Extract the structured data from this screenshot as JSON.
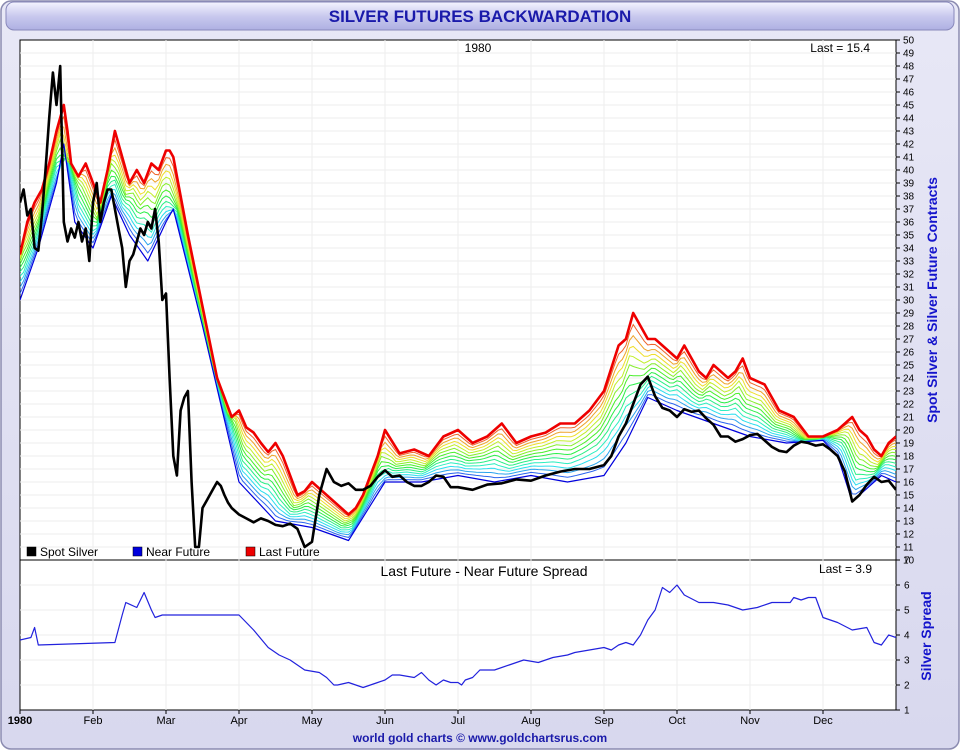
{
  "title": "SILVER FUTURES BACKWARDATION",
  "footer": "world gold charts © www.goldchartsrus.com",
  "x_axis": {
    "start_label": "1980",
    "months": [
      "Feb",
      "Mar",
      "Apr",
      "May",
      "Jun",
      "Jul",
      "Aug",
      "Sep",
      "Oct",
      "Nov",
      "Dec"
    ],
    "domain": [
      0,
      12
    ]
  },
  "colors": {
    "spot": "#000000",
    "near": "#0000dd",
    "last": "#ee0000",
    "spread": "#2222dd",
    "title_text": "#1a1aaa",
    "axis_title": "#1414cc"
  },
  "chart_data": [
    {
      "type": "line",
      "title": "1980",
      "annotation": "Last = 15.4",
      "ylabel": "Spot Silver & Silver Future Contracts",
      "ylim": [
        10,
        50
      ],
      "yticks": [
        10,
        11,
        12,
        13,
        14,
        15,
        16,
        17,
        18,
        19,
        20,
        21,
        22,
        23,
        24,
        25,
        26,
        27,
        28,
        29,
        30,
        31,
        32,
        33,
        34,
        35,
        36,
        37,
        38,
        39,
        40,
        41,
        42,
        43,
        44,
        45,
        46,
        47,
        48,
        49,
        50
      ],
      "legend": [
        "Spot Silver",
        "Near Future",
        "Last Future"
      ],
      "legend_position": "bottom-left",
      "grid": true,
      "series": [
        {
          "name": "Spot Silver",
          "x": [
            0,
            0.05,
            0.1,
            0.15,
            0.2,
            0.25,
            0.3,
            0.35,
            0.4,
            0.45,
            0.5,
            0.55,
            0.6,
            0.65,
            0.7,
            0.75,
            0.8,
            0.85,
            0.9,
            0.95,
            1,
            1.05,
            1.1,
            1.15,
            1.2,
            1.25,
            1.3,
            1.35,
            1.4,
            1.45,
            1.5,
            1.55,
            1.6,
            1.65,
            1.7,
            1.75,
            1.8,
            1.85,
            1.9,
            1.95,
            2,
            2.05,
            2.1,
            2.15,
            2.2,
            2.25,
            2.3,
            2.35,
            2.4,
            2.45,
            2.5,
            2.55,
            2.6,
            2.65,
            2.7,
            2.75,
            2.8,
            2.85,
            2.9,
            3,
            3.1,
            3.2,
            3.3,
            3.4,
            3.5,
            3.6,
            3.7,
            3.8,
            3.9,
            4,
            4.1,
            4.2,
            4.3,
            4.4,
            4.5,
            4.6,
            4.7,
            4.8,
            4.9,
            5,
            5.1,
            5.2,
            5.3,
            5.4,
            5.5,
            5.6,
            5.7,
            5.8,
            5.9,
            6,
            6.2,
            6.4,
            6.6,
            6.8,
            7,
            7.2,
            7.4,
            7.6,
            7.8,
            8,
            8.1,
            8.2,
            8.3,
            8.4,
            8.5,
            8.6,
            8.7,
            8.8,
            8.9,
            9,
            9.1,
            9.2,
            9.3,
            9.4,
            9.5,
            9.6,
            9.7,
            9.8,
            9.9,
            10,
            10.1,
            10.2,
            10.3,
            10.4,
            10.5,
            10.6,
            10.7,
            10.8,
            10.9,
            11,
            11.1,
            11.2,
            11.3,
            11.4,
            11.5,
            11.6,
            11.7,
            11.8,
            11.9,
            12
          ],
          "values": [
            37.5,
            38.5,
            36.5,
            37.0,
            34.0,
            33.8,
            36.5,
            40.0,
            44.0,
            47.5,
            45.0,
            48.0,
            36.0,
            34.5,
            35.5,
            34.8,
            36.0,
            34.5,
            35.5,
            33.0,
            37.5,
            39.0,
            36.0,
            37.5,
            38.5,
            38.5,
            37.0,
            35.5,
            34.0,
            31.0,
            33.0,
            33.5,
            34.5,
            35.5,
            35.0,
            36.0,
            35.5,
            37.0,
            34.5,
            30.0,
            30.5,
            24.0,
            18.0,
            16.5,
            21.5,
            22.5,
            23.0,
            16.0,
            11.0,
            11.0,
            14.0,
            14.5,
            15.0,
            15.5,
            16.0,
            15.7,
            15.0,
            14.4,
            14.0,
            13.5,
            13.2,
            12.9,
            13.2,
            13.0,
            12.7,
            12.6,
            12.8,
            12.4,
            11.0,
            11.4,
            15.0,
            17.0,
            16.0,
            15.7,
            15.9,
            15.4,
            15.4,
            15.7,
            16.4,
            16.9,
            16.4,
            16.5,
            16.0,
            15.7,
            15.7,
            16.0,
            16.5,
            16.4,
            15.6,
            15.6,
            15.4,
            15.8,
            15.9,
            16.2,
            16.1,
            16.5,
            16.8,
            17.0,
            17.0,
            17.3,
            18.0,
            19.5,
            20.5,
            22.0,
            23.5,
            24.1,
            22.6,
            21.7,
            21.5,
            21.0,
            21.6,
            21.4,
            21.5,
            20.9,
            20.4,
            19.5,
            19.5,
            19.1,
            19.3,
            19.6,
            19.7,
            19.2,
            18.7,
            18.4,
            18.3,
            18.8,
            19.1,
            19.0,
            18.8,
            18.9,
            18.5,
            18.0,
            16.8,
            14.5,
            15.0,
            15.8,
            16.4,
            16.0,
            16.1,
            15.4
          ]
        },
        {
          "name": "Near Future",
          "x": [
            0,
            0.25,
            0.5,
            0.6,
            0.75,
            1,
            1.25,
            1.5,
            1.75,
            2,
            2.1,
            2.5,
            3,
            3.5,
            4,
            4.5,
            5,
            5.5,
            6,
            6.5,
            7,
            7.5,
            8,
            8.3,
            8.6,
            8.8,
            9,
            9.5,
            10,
            10.5,
            11,
            11.2,
            11.4,
            11.6,
            11.8,
            12
          ],
          "values": [
            30.0,
            34.0,
            39.0,
            42.0,
            36.0,
            34.0,
            38.0,
            35.0,
            33.0,
            36.0,
            37.0,
            28.0,
            16.0,
            13.0,
            12.5,
            11.5,
            16.0,
            16.0,
            16.5,
            16.0,
            16.5,
            16.0,
            16.5,
            19.0,
            22.5,
            22.0,
            21.5,
            20.5,
            19.5,
            19.0,
            19.2,
            18.0,
            14.5,
            15.5,
            16.5,
            16.0
          ]
        },
        {
          "name": "Last Future",
          "x": [
            0,
            0.1,
            0.2,
            0.3,
            0.4,
            0.5,
            0.6,
            0.65,
            0.7,
            0.8,
            0.9,
            1,
            1.1,
            1.2,
            1.3,
            1.4,
            1.5,
            1.6,
            1.7,
            1.8,
            1.9,
            2,
            2.05,
            2.1,
            2.2,
            2.3,
            2.5,
            2.7,
            2.9,
            3.0,
            3.1,
            3.2,
            3.3,
            3.4,
            3.5,
            3.6,
            3.7,
            3.8,
            3.9,
            4,
            4.1,
            4.2,
            4.3,
            4.4,
            4.5,
            4.6,
            4.7,
            4.8,
            4.9,
            5,
            5.2,
            5.4,
            5.6,
            5.8,
            6,
            6.2,
            6.4,
            6.6,
            6.8,
            7,
            7.2,
            7.4,
            7.6,
            7.8,
            8,
            8.2,
            8.3,
            8.4,
            8.5,
            8.6,
            8.7,
            8.8,
            8.9,
            9,
            9.1,
            9.2,
            9.3,
            9.4,
            9.5,
            9.6,
            9.7,
            9.8,
            9.9,
            10,
            10.2,
            10.4,
            10.6,
            10.8,
            11,
            11.2,
            11.4,
            11.5,
            11.6,
            11.7,
            11.8,
            11.9,
            12
          ],
          "values": [
            33.5,
            36.0,
            37.5,
            38.5,
            40.5,
            43.0,
            45.0,
            43.0,
            40.5,
            39.5,
            40.5,
            39.0,
            37.5,
            40.0,
            43.0,
            41.0,
            39.0,
            40.0,
            39.0,
            40.5,
            40.0,
            41.5,
            41.5,
            41.0,
            38.0,
            35.0,
            29.5,
            24.0,
            21.0,
            21.5,
            20.2,
            19.8,
            19.0,
            18.3,
            19.0,
            18.0,
            16.5,
            15.0,
            15.3,
            16.0,
            15.5,
            15.0,
            14.5,
            14.0,
            13.5,
            14.0,
            15.0,
            16.5,
            18.0,
            20.0,
            18.2,
            18.5,
            18.0,
            19.5,
            20.0,
            19.0,
            19.5,
            20.5,
            19.0,
            19.5,
            19.8,
            20.5,
            20.5,
            21.5,
            23.0,
            26.5,
            27.0,
            29.0,
            28.0,
            27.0,
            27.0,
            26.5,
            26.0,
            25.5,
            26.5,
            25.5,
            24.5,
            24.0,
            25.0,
            24.5,
            24.0,
            24.5,
            25.5,
            24.0,
            23.5,
            21.5,
            21.0,
            19.5,
            19.5,
            20.0,
            21.0,
            20.0,
            19.5,
            18.5,
            18.0,
            19.0,
            19.5
          ]
        }
      ]
    },
    {
      "type": "line",
      "title": "Last Future - Near Future Spread",
      "annotation": "Last = 3.9",
      "ylabel": "Silver Spread",
      "ylim": [
        1,
        7
      ],
      "yticks": [
        1,
        2,
        3,
        4,
        5,
        6,
        7
      ],
      "grid": true,
      "series": [
        {
          "x": [
            0,
            0.15,
            0.2,
            0.25,
            1.3,
            1.4,
            1.45,
            1.6,
            1.7,
            1.8,
            1.85,
            1.95,
            2.1,
            2.3,
            2.5,
            2.75,
            3.0,
            3.2,
            3.4,
            3.55,
            3.7,
            3.9,
            4.1,
            4.2,
            4.3,
            4.35,
            4.5,
            4.6,
            4.7,
            4.8,
            4.9,
            5.0,
            5.1,
            5.2,
            5.4,
            5.5,
            5.6,
            5.7,
            5.8,
            5.9,
            6.0,
            6.05,
            6.1,
            6.2,
            6.3,
            6.5,
            6.7,
            6.9,
            7.1,
            7.3,
            7.5,
            7.6,
            7.8,
            8.0,
            8.1,
            8.2,
            8.3,
            8.4,
            8.5,
            8.6,
            8.7,
            8.8,
            8.9,
            9.0,
            9.1,
            9.3,
            9.5,
            9.7,
            9.9,
            10.1,
            10.3,
            10.5,
            10.55,
            10.6,
            10.7,
            10.8,
            10.9,
            11.0,
            11.2,
            11.4,
            11.6,
            11.7,
            11.8,
            11.9,
            12
          ],
          "values": [
            3.8,
            3.9,
            4.3,
            3.6,
            3.7,
            4.8,
            5.3,
            5.1,
            5.7,
            5.0,
            4.7,
            4.8,
            4.8,
            4.8,
            4.8,
            4.8,
            4.8,
            4.2,
            3.5,
            3.2,
            3.0,
            2.6,
            2.5,
            2.3,
            2.0,
            2.0,
            2.1,
            2.0,
            1.9,
            2.0,
            2.1,
            2.2,
            2.4,
            2.4,
            2.3,
            2.5,
            2.2,
            2.0,
            2.2,
            2.1,
            2.1,
            2.0,
            2.2,
            2.3,
            2.6,
            2.6,
            2.8,
            3.0,
            2.9,
            3.1,
            3.2,
            3.3,
            3.4,
            3.5,
            3.4,
            3.6,
            3.7,
            3.6,
            4.0,
            4.6,
            5.0,
            5.9,
            5.7,
            6.0,
            5.6,
            5.3,
            5.3,
            5.2,
            5.0,
            5.1,
            5.3,
            5.3,
            5.3,
            5.5,
            5.4,
            5.5,
            5.5,
            4.7,
            4.5,
            4.2,
            4.3,
            3.7,
            3.6,
            4.0,
            3.9
          ]
        }
      ]
    }
  ]
}
